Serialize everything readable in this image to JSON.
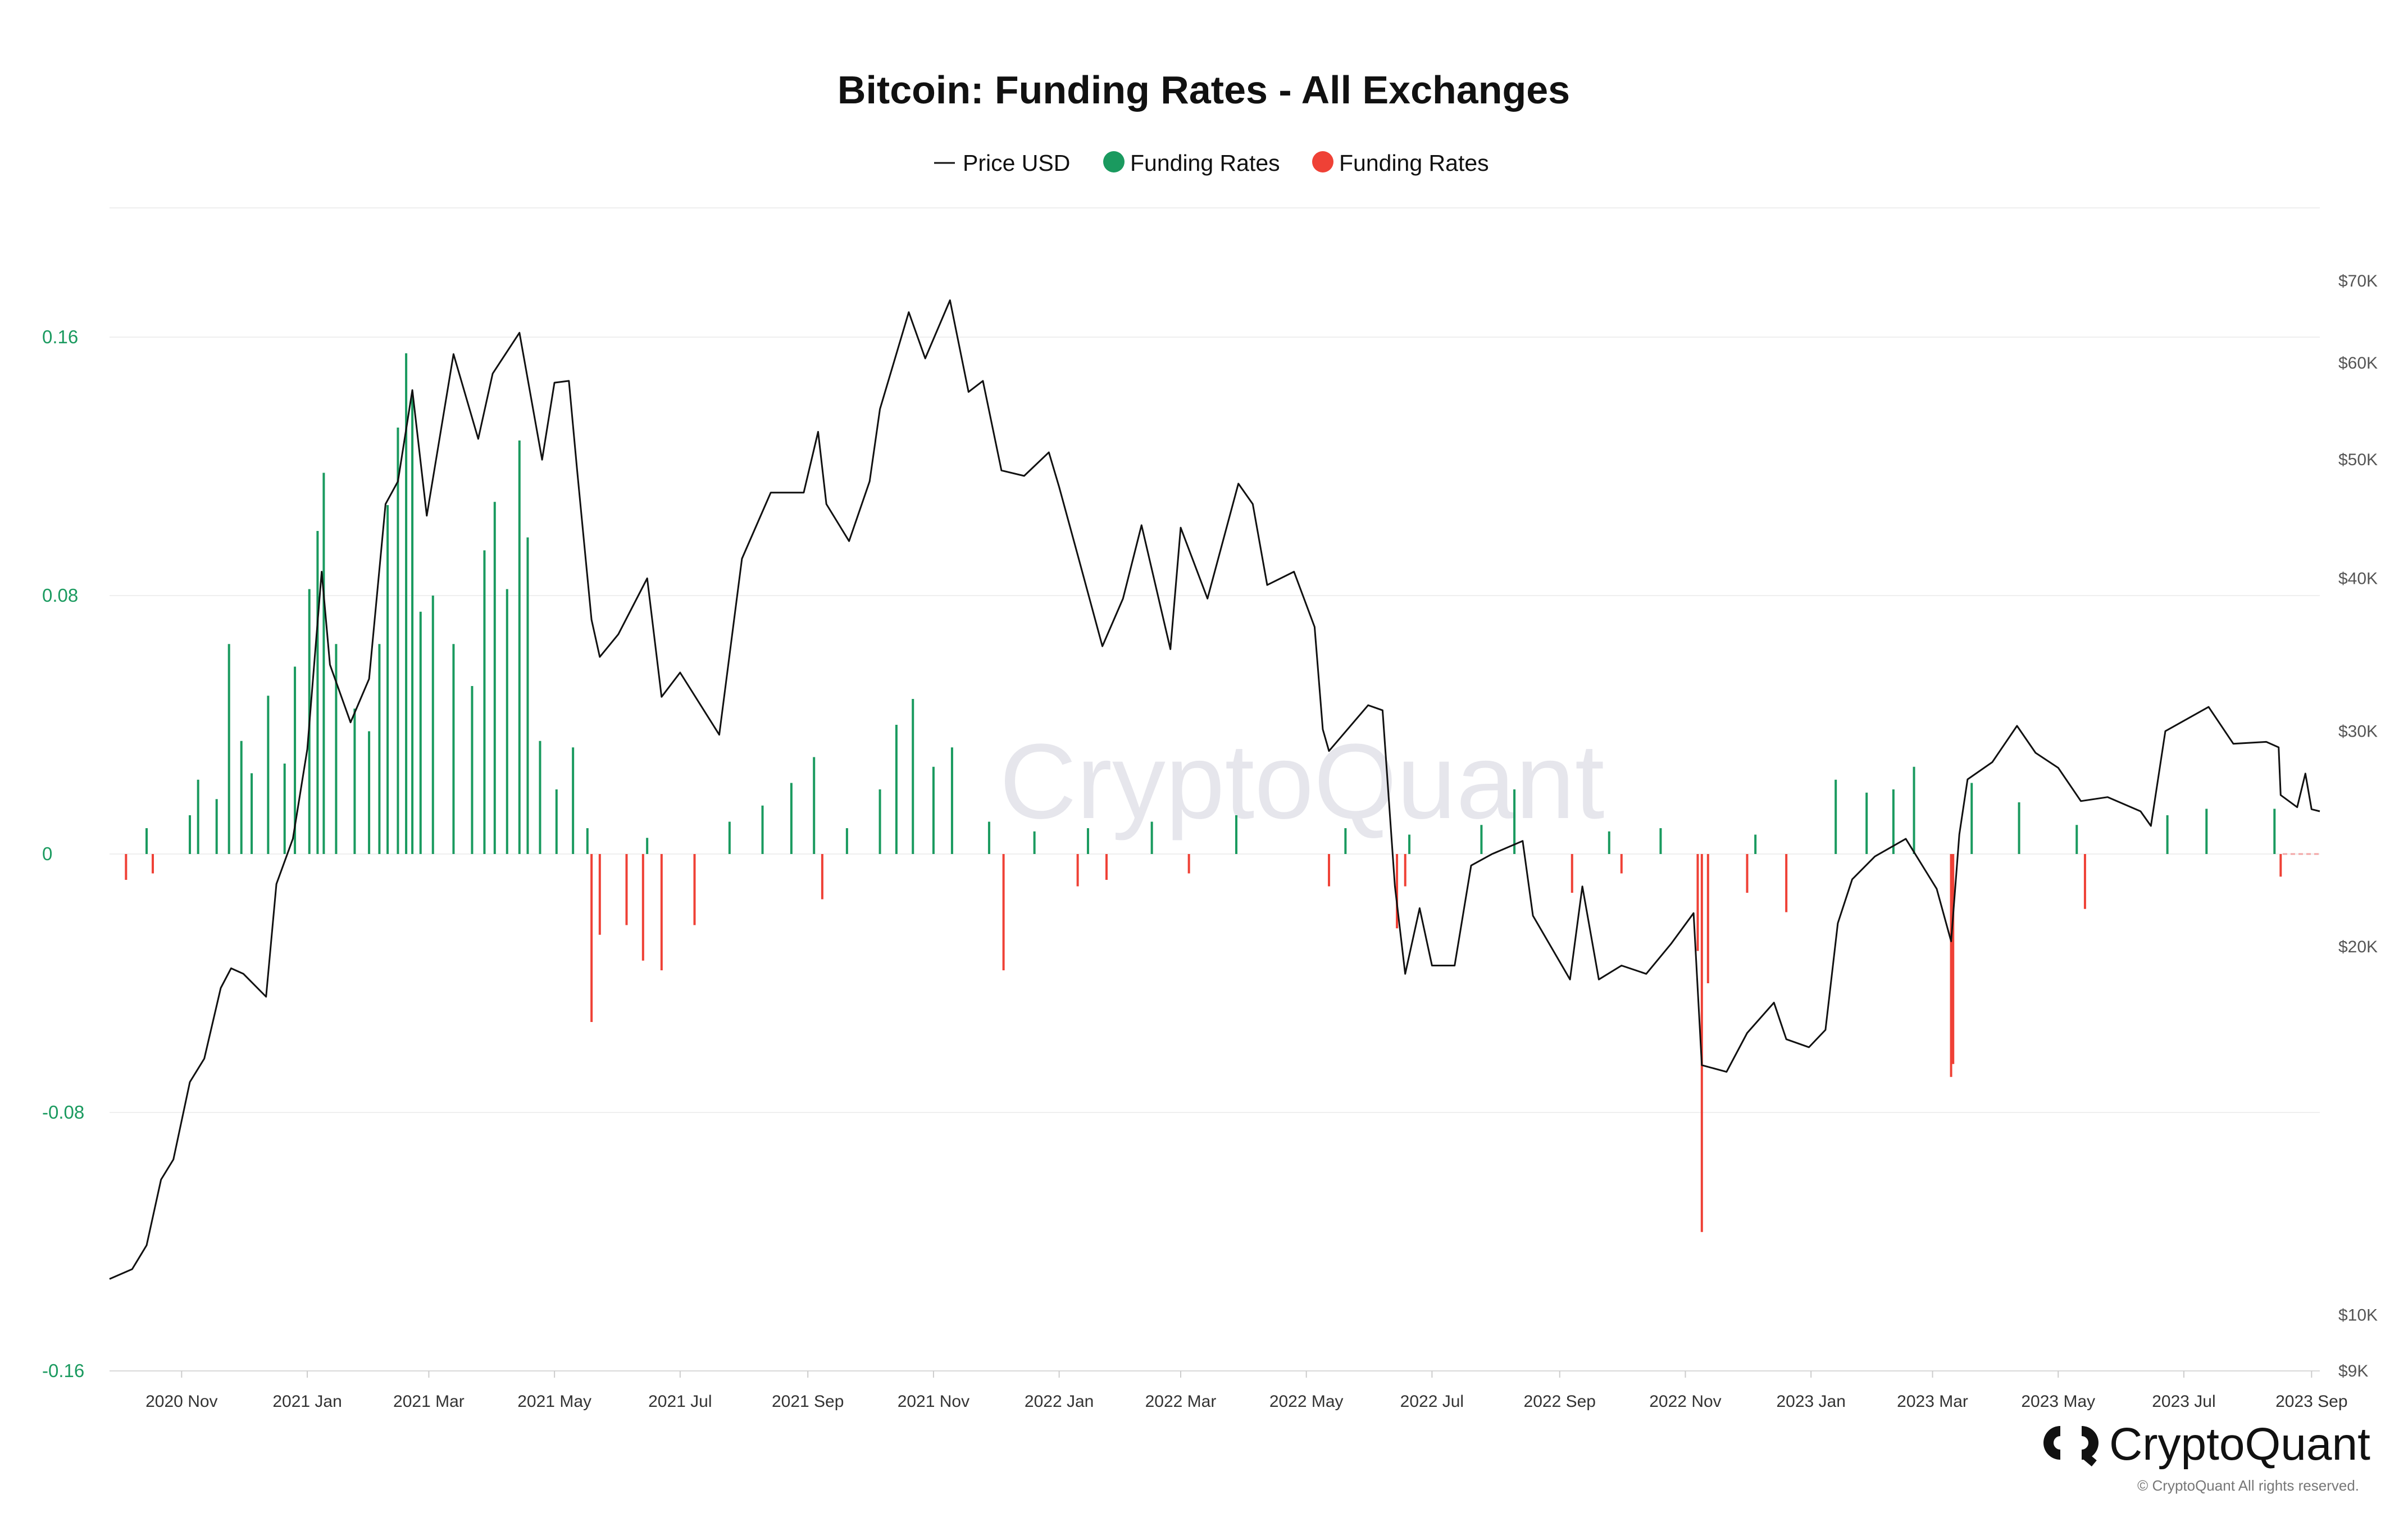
{
  "header": {
    "title": "Bitcoin: Funding Rates - All Exchanges"
  },
  "legend": {
    "price_label": "Price USD",
    "positive_label": "Funding Rates",
    "negative_label": "Funding Rates"
  },
  "watermark": "CryptoQuant",
  "footer": {
    "brand": "CryptoQuant",
    "copyright": "© CryptoQuant All rights reserved."
  },
  "colors": {
    "positive": "#1a9a5f",
    "negative": "#ef4136",
    "price_line": "#111111",
    "gridline": "#efefef"
  },
  "chart_data": {
    "type": "bar",
    "title": "Bitcoin: Funding Rates - All Exchanges",
    "x_range": [
      "2020-09-27",
      "2023-09-05"
    ],
    "left_axis": {
      "ylim": [
        -0.16,
        0.2
      ],
      "ticks": [
        0.16,
        0.08,
        0,
        -0.08,
        -0.16
      ],
      "tick_labels": [
        "0.16",
        "0.08",
        "0",
        "-0.08",
        "-0.16"
      ]
    },
    "right_axis": {
      "scale": "log",
      "ticks": [
        70000,
        60000,
        50000,
        40000,
        30000,
        20000,
        10000,
        9000
      ],
      "tick_labels": [
        "$70K",
        "$60K",
        "$50K",
        "$40K",
        "$30K",
        "$20K",
        "$10K",
        "$9K"
      ]
    },
    "x_ticks": [
      {
        "date": "2020-11-01",
        "label": "2020 Nov"
      },
      {
        "date": "2021-01-01",
        "label": "2021 Jan"
      },
      {
        "date": "2021-03-01",
        "label": "2021 Mar"
      },
      {
        "date": "2021-05-01",
        "label": "2021 May"
      },
      {
        "date": "2021-07-01",
        "label": "2021 Jul"
      },
      {
        "date": "2021-09-01",
        "label": "2021 Sep"
      },
      {
        "date": "2021-11-01",
        "label": "2021 Nov"
      },
      {
        "date": "2022-01-01",
        "label": "2022 Jan"
      },
      {
        "date": "2022-03-01",
        "label": "2022 Mar"
      },
      {
        "date": "2022-05-01",
        "label": "2022 May"
      },
      {
        "date": "2022-07-01",
        "label": "2022 Jul"
      },
      {
        "date": "2022-09-01",
        "label": "2022 Sep"
      },
      {
        "date": "2022-11-01",
        "label": "2022 Nov"
      },
      {
        "date": "2023-01-01",
        "label": "2023 Jan"
      },
      {
        "date": "2023-03-01",
        "label": "2023 Mar"
      },
      {
        "date": "2023-05-01",
        "label": "2023 May"
      },
      {
        "date": "2023-07-01",
        "label": "2023 Jul"
      },
      {
        "date": "2023-09-01",
        "label": "2023 Sep"
      }
    ],
    "series": [
      {
        "name": "Price USD",
        "axis": "right",
        "type": "line",
        "points": [
          [
            "2020-09-27",
            10700
          ],
          [
            "2020-10-08",
            10900
          ],
          [
            "2020-10-15",
            11400
          ],
          [
            "2020-10-22",
            12900
          ],
          [
            "2020-10-28",
            13400
          ],
          [
            "2020-11-05",
            15500
          ],
          [
            "2020-11-12",
            16200
          ],
          [
            "2020-11-20",
            18500
          ],
          [
            "2020-11-25",
            19200
          ],
          [
            "2020-12-01",
            19000
          ],
          [
            "2020-12-12",
            18200
          ],
          [
            "2020-12-17",
            22500
          ],
          [
            "2020-12-25",
            24500
          ],
          [
            "2021-01-01",
            29000
          ],
          [
            "2021-01-08",
            40500
          ],
          [
            "2021-01-12",
            34000
          ],
          [
            "2021-01-22",
            30500
          ],
          [
            "2021-01-31",
            33100
          ],
          [
            "2021-02-08",
            46000
          ],
          [
            "2021-02-14",
            48000
          ],
          [
            "2021-02-21",
            57000
          ],
          [
            "2021-02-28",
            45000
          ],
          [
            "2021-03-13",
            61000
          ],
          [
            "2021-03-25",
            52000
          ],
          [
            "2021-04-01",
            58800
          ],
          [
            "2021-04-14",
            63500
          ],
          [
            "2021-04-25",
            50000
          ],
          [
            "2021-05-01",
            57800
          ],
          [
            "2021-05-08",
            58000
          ],
          [
            "2021-05-12",
            49000
          ],
          [
            "2021-05-19",
            37000
          ],
          [
            "2021-05-23",
            34500
          ],
          [
            "2021-06-01",
            36000
          ],
          [
            "2021-06-15",
            40000
          ],
          [
            "2021-06-22",
            32000
          ],
          [
            "2021-07-01",
            33500
          ],
          [
            "2021-07-20",
            29800
          ],
          [
            "2021-07-31",
            41500
          ],
          [
            "2021-08-14",
            47000
          ],
          [
            "2021-08-30",
            47000
          ],
          [
            "2021-09-06",
            52700
          ],
          [
            "2021-09-10",
            46000
          ],
          [
            "2021-09-21",
            42900
          ],
          [
            "2021-10-01",
            48000
          ],
          [
            "2021-10-06",
            55000
          ],
          [
            "2021-10-20",
            66000
          ],
          [
            "2021-10-28",
            60500
          ],
          [
            "2021-11-09",
            67500
          ],
          [
            "2021-11-18",
            56800
          ],
          [
            "2021-11-25",
            58000
          ],
          [
            "2021-12-04",
            49000
          ],
          [
            "2021-12-15",
            48500
          ],
          [
            "2021-12-27",
            50700
          ],
          [
            "2022-01-01",
            47500
          ],
          [
            "2022-01-10",
            41800
          ],
          [
            "2022-01-22",
            35200
          ],
          [
            "2022-02-01",
            38500
          ],
          [
            "2022-02-10",
            44200
          ],
          [
            "2022-02-24",
            35000
          ],
          [
            "2022-03-01",
            44000
          ],
          [
            "2022-03-14",
            38500
          ],
          [
            "2022-03-29",
            47800
          ],
          [
            "2022-04-05",
            46000
          ],
          [
            "2022-04-12",
            39500
          ],
          [
            "2022-04-25",
            40500
          ],
          [
            "2022-05-05",
            36500
          ],
          [
            "2022-05-09",
            30100
          ],
          [
            "2022-05-12",
            28900
          ],
          [
            "2022-05-31",
            31500
          ],
          [
            "2022-06-07",
            31200
          ],
          [
            "2022-06-13",
            22400
          ],
          [
            "2022-06-18",
            19000
          ],
          [
            "2022-06-25",
            21500
          ],
          [
            "2022-07-01",
            19300
          ],
          [
            "2022-07-12",
            19300
          ],
          [
            "2022-07-20",
            23300
          ],
          [
            "2022-07-30",
            23800
          ],
          [
            "2022-08-14",
            24400
          ],
          [
            "2022-08-19",
            21200
          ],
          [
            "2022-09-06",
            18800
          ],
          [
            "2022-09-12",
            22400
          ],
          [
            "2022-09-20",
            18800
          ],
          [
            "2022-10-01",
            19300
          ],
          [
            "2022-10-13",
            19000
          ],
          [
            "2022-10-25",
            20100
          ],
          [
            "2022-11-05",
            21300
          ],
          [
            "2022-11-09",
            16000
          ],
          [
            "2022-11-21",
            15800
          ],
          [
            "2022-12-01",
            17000
          ],
          [
            "2022-12-14",
            18000
          ],
          [
            "2022-12-20",
            16800
          ],
          [
            "2022-12-31",
            16550
          ],
          [
            "2023-01-08",
            17100
          ],
          [
            "2023-01-14",
            20900
          ],
          [
            "2023-01-21",
            22700
          ],
          [
            "2023-02-01",
            23700
          ],
          [
            "2023-02-16",
            24500
          ],
          [
            "2023-03-03",
            22300
          ],
          [
            "2023-03-10",
            20200
          ],
          [
            "2023-03-14",
            24700
          ],
          [
            "2023-03-18",
            27400
          ],
          [
            "2023-03-30",
            28300
          ],
          [
            "2023-04-11",
            30300
          ],
          [
            "2023-04-20",
            28800
          ],
          [
            "2023-05-01",
            28000
          ],
          [
            "2023-05-12",
            26300
          ],
          [
            "2023-05-25",
            26500
          ],
          [
            "2023-06-10",
            25800
          ],
          [
            "2023-06-15",
            25100
          ],
          [
            "2023-06-22",
            30000
          ],
          [
            "2023-07-13",
            31400
          ],
          [
            "2023-07-25",
            29300
          ],
          [
            "2023-08-10",
            29400
          ],
          [
            "2023-08-16",
            29100
          ],
          [
            "2023-08-17",
            26600
          ],
          [
            "2023-08-25",
            26000
          ],
          [
            "2023-08-29",
            27700
          ],
          [
            "2023-09-01",
            25900
          ],
          [
            "2023-09-05",
            25800
          ]
        ]
      },
      {
        "name": "Funding Rates",
        "axis": "left",
        "type": "bar",
        "sign": "positive",
        "points": [
          [
            "2020-10-15",
            0.008
          ],
          [
            "2020-11-05",
            0.012
          ],
          [
            "2020-11-09",
            0.023
          ],
          [
            "2020-11-18",
            0.017
          ],
          [
            "2020-11-24",
            0.065
          ],
          [
            "2020-11-30",
            0.035
          ],
          [
            "2020-12-05",
            0.025
          ],
          [
            "2020-12-13",
            0.049
          ],
          [
            "2020-12-21",
            0.028
          ],
          [
            "2020-12-26",
            0.058
          ],
          [
            "2021-01-02",
            0.082
          ],
          [
            "2021-01-06",
            0.1
          ],
          [
            "2021-01-09",
            0.118
          ],
          [
            "2021-01-15",
            0.065
          ],
          [
            "2021-01-24",
            0.045
          ],
          [
            "2021-01-31",
            0.038
          ],
          [
            "2021-02-05",
            0.065
          ],
          [
            "2021-02-09",
            0.108
          ],
          [
            "2021-02-14",
            0.132
          ],
          [
            "2021-02-18",
            0.155
          ],
          [
            "2021-02-21",
            0.143
          ],
          [
            "2021-02-25",
            0.075
          ],
          [
            "2021-03-03",
            0.08
          ],
          [
            "2021-03-13",
            0.065
          ],
          [
            "2021-03-22",
            0.052
          ],
          [
            "2021-03-28",
            0.094
          ],
          [
            "2021-04-02",
            0.109
          ],
          [
            "2021-04-08",
            0.082
          ],
          [
            "2021-04-14",
            0.128
          ],
          [
            "2021-04-18",
            0.098
          ],
          [
            "2021-04-24",
            0.035
          ],
          [
            "2021-05-02",
            0.02
          ],
          [
            "2021-05-10",
            0.033
          ],
          [
            "2021-05-17",
            0.008
          ],
          [
            "2021-06-15",
            0.005
          ],
          [
            "2021-07-25",
            0.01
          ],
          [
            "2021-08-10",
            0.015
          ],
          [
            "2021-08-24",
            0.022
          ],
          [
            "2021-09-04",
            0.03
          ],
          [
            "2021-09-20",
            0.008
          ],
          [
            "2021-10-06",
            0.02
          ],
          [
            "2021-10-14",
            0.04
          ],
          [
            "2021-10-22",
            0.048
          ],
          [
            "2021-11-01",
            0.027
          ],
          [
            "2021-11-10",
            0.033
          ],
          [
            "2021-11-28",
            0.01
          ],
          [
            "2021-12-20",
            0.007
          ],
          [
            "2022-01-15",
            0.008
          ],
          [
            "2022-02-15",
            0.01
          ],
          [
            "2022-03-28",
            0.012
          ],
          [
            "2022-05-20",
            0.008
          ],
          [
            "2022-06-20",
            0.006
          ],
          [
            "2022-07-25",
            0.009
          ],
          [
            "2022-08-10",
            0.02
          ],
          [
            "2022-09-25",
            0.007
          ],
          [
            "2022-10-20",
            0.008
          ],
          [
            "2022-12-05",
            0.006
          ],
          [
            "2023-01-13",
            0.023
          ],
          [
            "2023-01-28",
            0.019
          ],
          [
            "2023-02-10",
            0.02
          ],
          [
            "2023-02-20",
            0.027
          ],
          [
            "2023-03-20",
            0.022
          ],
          [
            "2023-04-12",
            0.016
          ],
          [
            "2023-05-10",
            0.009
          ],
          [
            "2023-06-23",
            0.012
          ],
          [
            "2023-07-12",
            0.014
          ],
          [
            "2023-08-14",
            0.014
          ]
        ]
      },
      {
        "name": "Funding Rates",
        "axis": "left",
        "type": "bar",
        "sign": "negative",
        "points": [
          [
            "2020-10-05",
            -0.008
          ],
          [
            "2020-10-18",
            -0.006
          ],
          [
            "2021-05-19",
            -0.052
          ],
          [
            "2021-05-23",
            -0.025
          ],
          [
            "2021-06-05",
            -0.022
          ],
          [
            "2021-06-13",
            -0.033
          ],
          [
            "2021-06-22",
            -0.036
          ],
          [
            "2021-07-08",
            -0.022
          ],
          [
            "2021-09-08",
            -0.014
          ],
          [
            "2021-12-05",
            -0.036
          ],
          [
            "2022-01-10",
            -0.01
          ],
          [
            "2022-01-24",
            -0.008
          ],
          [
            "2022-03-05",
            -0.006
          ],
          [
            "2022-05-12",
            -0.01
          ],
          [
            "2022-06-14",
            -0.023
          ],
          [
            "2022-06-18",
            -0.01
          ],
          [
            "2022-09-07",
            -0.012
          ],
          [
            "2022-10-01",
            -0.006
          ],
          [
            "2022-11-07",
            -0.03
          ],
          [
            "2022-11-09",
            -0.117
          ],
          [
            "2022-11-12",
            -0.04
          ],
          [
            "2022-12-01",
            -0.012
          ],
          [
            "2022-12-20",
            -0.018
          ],
          [
            "2023-03-10",
            -0.069
          ],
          [
            "2023-03-11",
            -0.065
          ],
          [
            "2023-05-14",
            -0.017
          ],
          [
            "2023-08-17",
            -0.007
          ]
        ]
      }
    ]
  }
}
